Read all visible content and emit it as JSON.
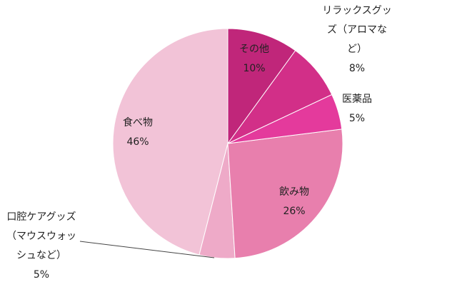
{
  "chart_data": {
    "type": "pie",
    "categories": [
      "その他",
      "リラックスグッズ（アロマなど）",
      "医薬品",
      "飲み物",
      "口腔ケアグッズ（マウスウォッシュなど）",
      "食べ物"
    ],
    "values": [
      10,
      8,
      5,
      26,
      5,
      46
    ],
    "value_labels": [
      "10%",
      "8%",
      "5%",
      "26%",
      "5%",
      "46%"
    ],
    "colors": [
      "#c0267a",
      "#d22f88",
      "#e43a9c",
      "#e87fad",
      "#eeaac8",
      "#f2c3d7"
    ]
  }
}
